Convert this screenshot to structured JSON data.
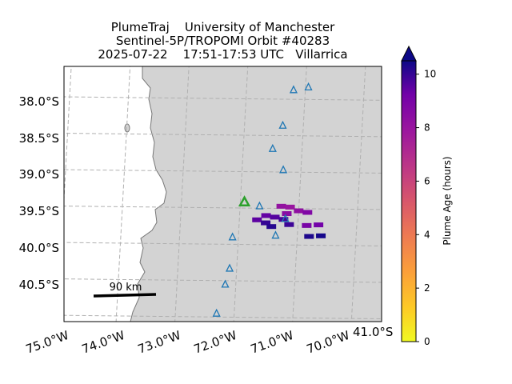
{
  "title": {
    "line1": "PlumeTraj    University of Manchester",
    "line2": "Sentinel-5P/TROPOMI Orbit #40283",
    "line3": "2025-07-22    17:51-17:53 UTC   Villarrica"
  },
  "lat_labels": [
    "38.0°S",
    "38.5°S",
    "39.0°S",
    "39.5°S",
    "40.0°S",
    "40.5°S",
    "41.0°S"
  ],
  "lon_labels": [
    "75.0°W",
    "74.0°W",
    "73.0°W",
    "72.0°W",
    "71.0°W",
    "70.0°W"
  ],
  "scale_bar": {
    "label": "90 km"
  },
  "colorbar": {
    "label": "Plume Age (hours)",
    "ticks": [
      "0",
      "2",
      "4",
      "6",
      "8",
      "10"
    ],
    "vmin": 0,
    "vmax": 10.5,
    "extend": "max",
    "colormap": "plasma_r"
  },
  "colors": {
    "land": "#d3d3d3",
    "sea": "#ffffff",
    "coastline": "#777777",
    "gridline": "#b0b0b0",
    "volcano_marker": "#2ca02c",
    "station_marker": "#1f77b4"
  },
  "volcano": {
    "name": "Villarrica",
    "lat": -39.42,
    "lon": -71.93
  },
  "stations": [
    {
      "lat": -37.87,
      "lon": -71.2
    },
    {
      "lat": -37.83,
      "lon": -70.95
    },
    {
      "lat": -38.36,
      "lon": -71.35
    },
    {
      "lat": -38.68,
      "lon": -71.5
    },
    {
      "lat": -38.97,
      "lon": -71.3
    },
    {
      "lat": -39.47,
      "lon": -71.67
    },
    {
      "lat": -39.64,
      "lon": -71.22
    },
    {
      "lat": -39.87,
      "lon": -71.37
    },
    {
      "lat": -39.9,
      "lon": -72.1
    },
    {
      "lat": -40.33,
      "lon": -72.12
    },
    {
      "lat": -40.55,
      "lon": -72.18
    },
    {
      "lat": -40.95,
      "lon": -72.3
    }
  ],
  "plume_pixels": [
    {
      "lat": -39.47,
      "lon": -71.3,
      "age": 8.2
    },
    {
      "lat": -39.48,
      "lon": -71.15,
      "age": 8.0
    },
    {
      "lat": -39.53,
      "lon": -71.0,
      "age": 8.3
    },
    {
      "lat": -39.55,
      "lon": -70.85,
      "age": 8.8
    },
    {
      "lat": -39.57,
      "lon": -71.2,
      "age": 8.5
    },
    {
      "lat": -39.6,
      "lon": -71.55,
      "age": 9.4
    },
    {
      "lat": -39.62,
      "lon": -71.4,
      "age": 9.6
    },
    {
      "lat": -39.65,
      "lon": -71.25,
      "age": 9.8
    },
    {
      "lat": -39.66,
      "lon": -71.7,
      "age": 9.5
    },
    {
      "lat": -39.7,
      "lon": -71.55,
      "age": 10.0
    },
    {
      "lat": -39.72,
      "lon": -71.15,
      "age": 9.9
    },
    {
      "lat": -39.75,
      "lon": -71.45,
      "age": 10.2
    },
    {
      "lat": -39.73,
      "lon": -70.85,
      "age": 9.0
    },
    {
      "lat": -39.72,
      "lon": -70.65,
      "age": 9.2
    },
    {
      "lat": -39.88,
      "lon": -70.8,
      "age": 10.3
    },
    {
      "lat": -39.87,
      "lon": -70.6,
      "age": 10.4
    }
  ]
}
